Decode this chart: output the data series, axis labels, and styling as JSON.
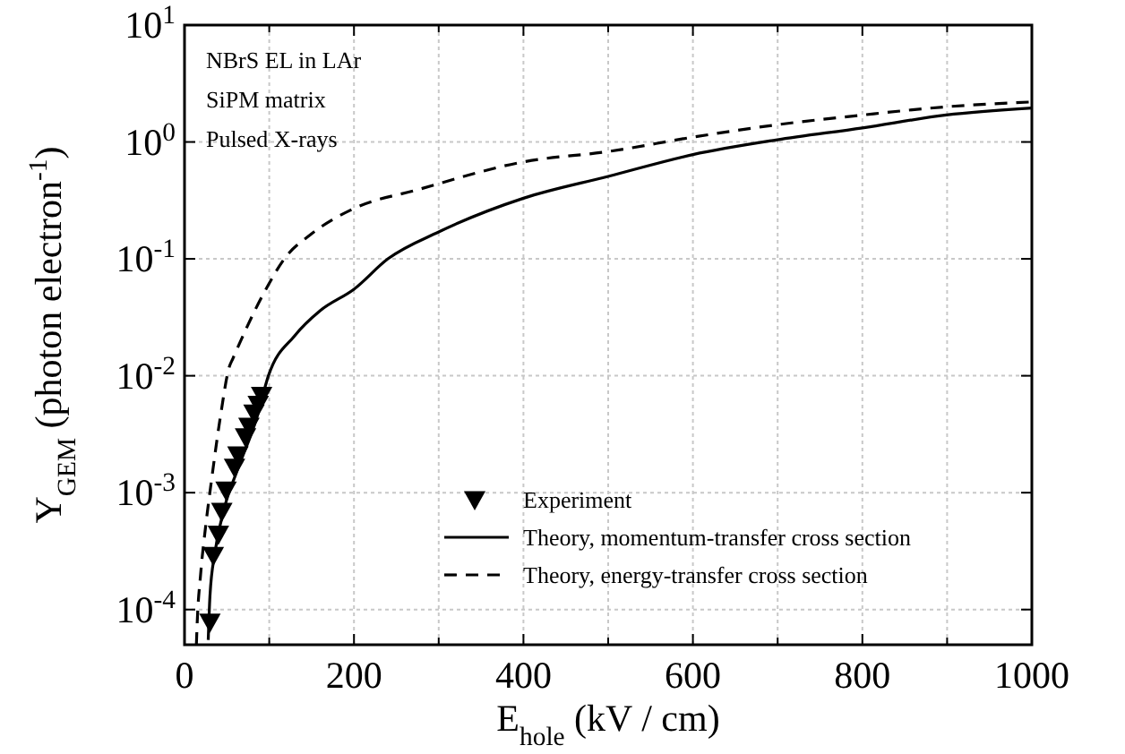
{
  "chart_data": {
    "type": "line",
    "xlabel": "E$_{hole}$ (kV / cm)",
    "ylabel": "Y$_{GEM}$ (photon electron$^{-1}$)",
    "annotations": [
      "NBrS EL in LAr",
      "SiPM matrix",
      "Pulsed X-rays"
    ],
    "log": "y",
    "grid": true,
    "legend": "bottom",
    "xlim": [
      0,
      1000
    ],
    "ylim": [
      5e-05,
      10
    ],
    "xticks": [
      0,
      {
        "value": 100,
        "label": null
      },
      200,
      {
        "value": 300,
        "label": null
      },
      400,
      {
        "value": 500,
        "label": null
      },
      600,
      {
        "value": 700,
        "label": null
      },
      800,
      {
        "value": 900,
        "label": null
      },
      1000
    ],
    "yticks": [
      {
        "value": 0.0001,
        "label": "10$^{-4}$"
      },
      {
        "value": 0.001,
        "label": "10$^{-3}$"
      },
      {
        "value": 0.01,
        "label": "10$^{-2}$"
      },
      {
        "value": 0.1,
        "label": "10$^{-1}$"
      },
      {
        "value": 1,
        "label": "10$^{0}$"
      },
      {
        "value": 10,
        "label": "10$^{1}$"
      }
    ],
    "series": [
      {
        "name": "Experiment",
        "type": "scatter",
        "marker": "triangle",
        "color": "#000000",
        "x": [
          30,
          34,
          40,
          44,
          49,
          59,
          63,
          72,
          76,
          82,
          87,
          91
        ],
        "values": [
          7.8e-05,
          0.00029,
          0.00044,
          0.00069,
          0.00105,
          0.00165,
          0.0021,
          0.003,
          0.0037,
          0.0048,
          0.0057,
          0.0068
        ]
      },
      {
        "name": "Theory, momentum-transfer cross section",
        "line_style": "solid",
        "color": "#000000",
        "x": [
          28,
          30,
          36,
          47,
          63,
          85,
          99,
          130,
          160,
          200,
          240,
          300,
          400,
          501,
          600,
          698,
          800,
          899,
          1000
        ],
        "values": [
          5.5e-05,
          0.00013,
          0.00031,
          0.00074,
          0.0016,
          0.0043,
          0.01,
          0.022,
          0.036,
          0.055,
          0.1,
          0.17,
          0.33,
          0.51,
          0.78,
          1.04,
          1.32,
          1.7,
          1.95
        ]
      },
      {
        "name": "Theory, energy-transfer cross section",
        "line_style": "dashed",
        "color": "#000000",
        "x": [
          14,
          15,
          19,
          25,
          32,
          42,
          53,
          57,
          93,
          120,
          148,
          200,
          275,
          402,
          501,
          600,
          698,
          800,
          899,
          1000
        ],
        "values": [
          5e-05,
          7.8e-05,
          0.0002,
          0.00052,
          0.0013,
          0.0043,
          0.012,
          0.014,
          0.05,
          0.105,
          0.16,
          0.27,
          0.39,
          0.68,
          0.83,
          1.1,
          1.4,
          1.7,
          2.0,
          2.2
        ]
      }
    ]
  }
}
